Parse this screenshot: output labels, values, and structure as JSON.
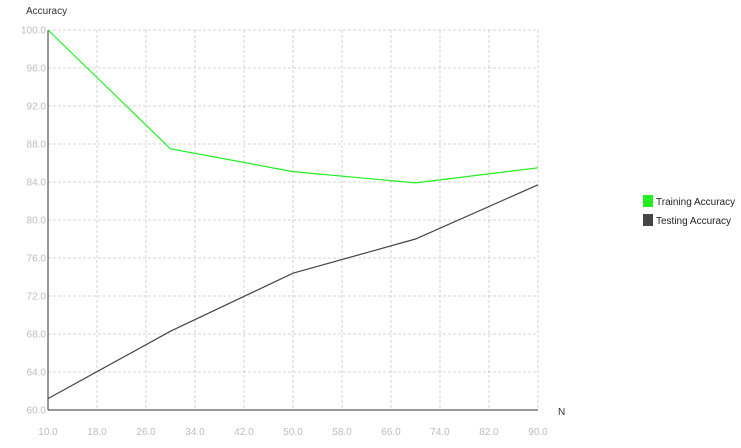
{
  "chart_data": {
    "type": "line",
    "title": "",
    "xlabel": "N",
    "ylabel": "Accuracy",
    "xlim": [
      10,
      90
    ],
    "ylim": [
      60,
      100
    ],
    "xticks": [
      "10.0",
      "18.0",
      "26.0",
      "34.0",
      "42.0",
      "50.0",
      "58.0",
      "66.0",
      "74.0",
      "82.0",
      "90.0"
    ],
    "yticks": [
      "60.0",
      "64.0",
      "68.0",
      "72.0",
      "76.0",
      "80.0",
      "84.0",
      "88.0",
      "92.0",
      "96.0",
      "100.0"
    ],
    "grid": true,
    "legend_position": "right",
    "series": [
      {
        "name": "Training Accuracy",
        "color": "#22ee22",
        "x": [
          10,
          30,
          50,
          70,
          90
        ],
        "y": [
          100.0,
          87.5,
          85.1,
          83.9,
          85.5
        ]
      },
      {
        "name": "Testing Accuracy",
        "color": "#444444",
        "x": [
          10,
          30,
          50,
          70,
          90
        ],
        "y": [
          61.2,
          68.3,
          74.4,
          78.0,
          83.7
        ]
      }
    ]
  }
}
